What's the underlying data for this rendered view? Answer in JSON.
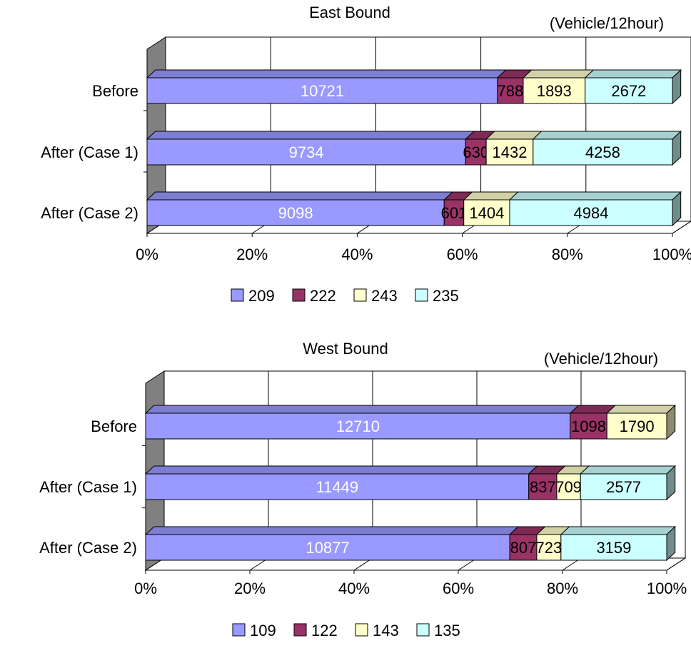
{
  "chart_data": [
    {
      "type": "bar",
      "orientation": "horizontal",
      "stacked": "percent",
      "title": "East Bound",
      "unit_label": "(Vehicle/12hour)",
      "categories": [
        "Before",
        "After (Case 1)",
        "After (Case 2)"
      ],
      "series": [
        {
          "name": "209",
          "values": [
            10721,
            9734,
            9098
          ],
          "color": "#9999ff"
        },
        {
          "name": "222",
          "values": [
            788,
            630,
            601
          ],
          "color": "#993366"
        },
        {
          "name": "243",
          "values": [
            1893,
            1432,
            1404
          ],
          "color": "#ffffcc"
        },
        {
          "name": "235",
          "values": [
            2672,
            4258,
            4984
          ],
          "color": "#ccffff"
        }
      ],
      "xticks": [
        "0%",
        "20%",
        "40%",
        "60%",
        "80%",
        "100%"
      ],
      "xlim": [
        0,
        100
      ],
      "grid": true,
      "legend": "bottom"
    },
    {
      "type": "bar",
      "orientation": "horizontal",
      "stacked": "percent",
      "title": "West Bound",
      "unit_label": "(Vehicle/12hour)",
      "categories": [
        "Before",
        "After (Case 1)",
        "After (Case 2)"
      ],
      "series": [
        {
          "name": "109",
          "values": [
            12710,
            11449,
            10877
          ],
          "color": "#9999ff"
        },
        {
          "name": "122",
          "values": [
            1098,
            837,
            807
          ],
          "color": "#993366"
        },
        {
          "name": "143",
          "values": [
            1790,
            709,
            723
          ],
          "color": "#ffffcc"
        },
        {
          "name": "135",
          "values": [
            null,
            2577,
            3159
          ],
          "color": "#ccffff"
        }
      ],
      "xticks": [
        "0%",
        "20%",
        "40%",
        "60%",
        "80%",
        "100%"
      ],
      "xlim": [
        0,
        100
      ],
      "grid": true,
      "legend": "bottom"
    }
  ]
}
